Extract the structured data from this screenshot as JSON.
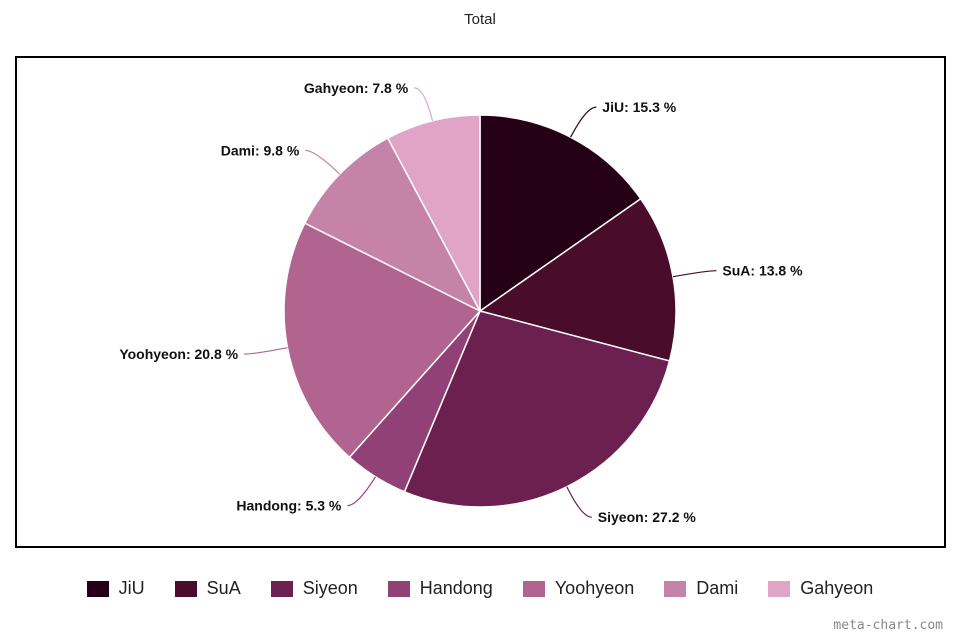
{
  "chart_data": {
    "type": "pie",
    "title": "Total",
    "slices": [
      {
        "name": "JiU",
        "value": 15.3,
        "label": "JiU: 15.3 %",
        "color": "#260016"
      },
      {
        "name": "SuA",
        "value": 13.8,
        "label": "SuA: 13.8 %",
        "color": "#4a0c2b"
      },
      {
        "name": "Siyeon",
        "value": 27.2,
        "label": "Siyeon: 27.2 %",
        "color": "#6b2050"
      },
      {
        "name": "Handong",
        "value": 5.3,
        "label": "Handong: 5.3 %",
        "color": "#914175"
      },
      {
        "name": "Yoohyeon",
        "value": 20.8,
        "label": "Yoohyeon: 20.8 %",
        "color": "#b0648f"
      },
      {
        "name": "Dami",
        "value": 9.8,
        "label": "Dami: 9.8 %",
        "color": "#c584a7"
      },
      {
        "name": "Gahyeon",
        "value": 7.8,
        "label": "Gahyeon: 7.8 %",
        "color": "#dfa4c6"
      }
    ],
    "legend_position": "bottom"
  },
  "credit": "meta-chart.com"
}
